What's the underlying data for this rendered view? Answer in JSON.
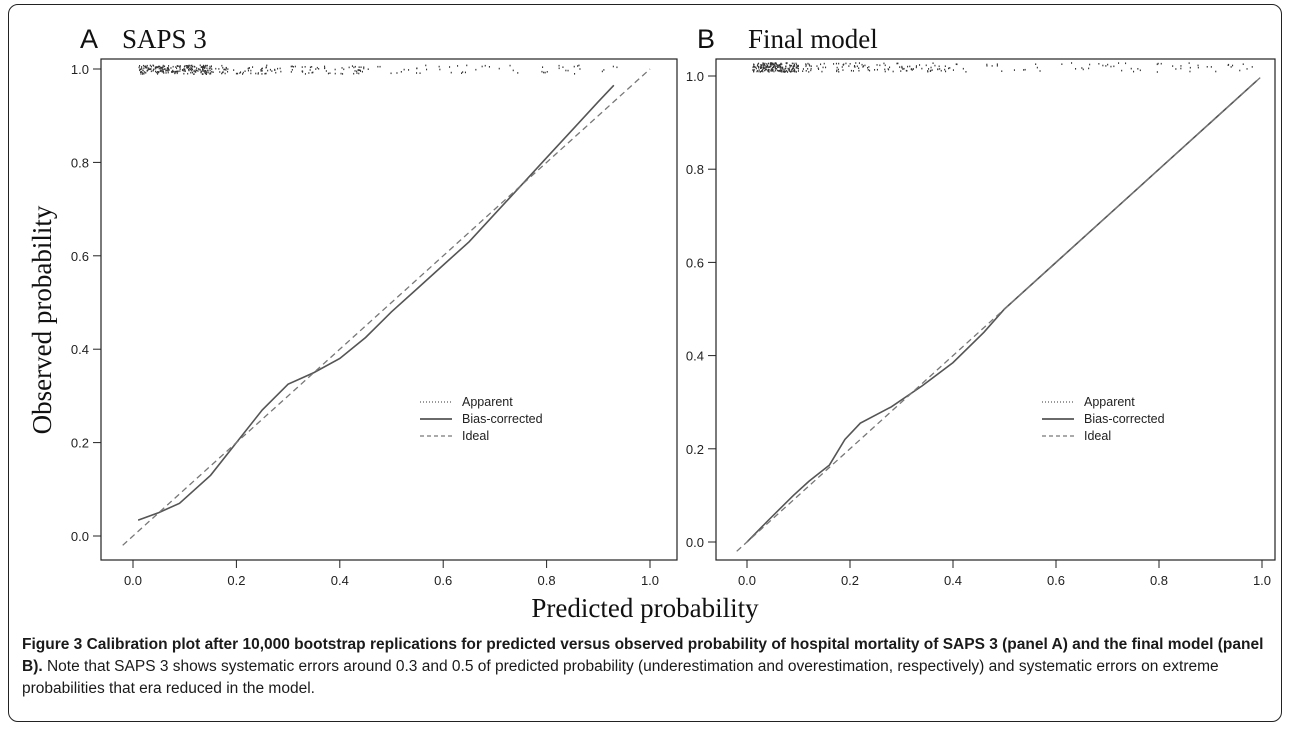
{
  "figure": {
    "xlabel": "Predicted probability",
    "ylabel": "Observed probability"
  },
  "caption": {
    "bold": "Figure 3 Calibration plot after 10,000 bootstrap replications for predicted versus observed probability of hospital mortality of SAPS 3 (panel A) and the final model (panel B).",
    "text": " Note that SAPS 3 shows systematic errors around 0.3 and 0.5 of predicted probability (underestimation and overestimation, respectively) and systematic errors on extreme probabilities that era reduced in the model."
  },
  "colors": {
    "line": "#555555",
    "ideal": "#777777",
    "frame": "#222222"
  },
  "chart_data": [
    {
      "type": "line",
      "panel_letter": "A",
      "title": "SAPS 3",
      "xlim": [
        0,
        1
      ],
      "ylim": [
        0,
        1
      ],
      "x_ticks": [
        "0.0",
        "0.2",
        "0.4",
        "0.6",
        "0.8",
        "1.0"
      ],
      "y_ticks": [
        "0.0",
        "0.2",
        "0.4",
        "0.6",
        "0.8",
        "1.0"
      ],
      "legend": {
        "position": "center-right",
        "entries": [
          "Apparent",
          "Bias-corrected",
          "Ideal"
        ]
      },
      "series": [
        {
          "name": "Apparent",
          "style": "dotted",
          "x": [
            0.01,
            0.05,
            0.09,
            0.15,
            0.2,
            0.25,
            0.3,
            0.35,
            0.4,
            0.45,
            0.5,
            0.55,
            0.6,
            0.65,
            0.7,
            0.75,
            0.8,
            0.85,
            0.9,
            0.93
          ],
          "y": [
            0.034,
            0.05,
            0.07,
            0.13,
            0.2,
            0.27,
            0.325,
            0.35,
            0.38,
            0.425,
            0.48,
            0.53,
            0.58,
            0.63,
            0.69,
            0.75,
            0.81,
            0.87,
            0.93,
            0.965
          ]
        },
        {
          "name": "Bias-corrected",
          "style": "solid",
          "x": [
            0.01,
            0.05,
            0.09,
            0.15,
            0.2,
            0.25,
            0.3,
            0.35,
            0.4,
            0.45,
            0.5,
            0.55,
            0.6,
            0.65,
            0.7,
            0.75,
            0.8,
            0.85,
            0.9,
            0.93
          ],
          "y": [
            0.034,
            0.05,
            0.07,
            0.13,
            0.2,
            0.27,
            0.325,
            0.35,
            0.38,
            0.425,
            0.48,
            0.53,
            0.58,
            0.63,
            0.69,
            0.75,
            0.81,
            0.87,
            0.93,
            0.965
          ]
        },
        {
          "name": "Ideal",
          "style": "dashed",
          "x": [
            -0.02,
            1.0
          ],
          "y": [
            -0.02,
            1.0
          ]
        }
      ],
      "rug": {
        "y": 1.0,
        "clusters": [
          {
            "from": 0.01,
            "to": 0.15,
            "count": 220
          },
          {
            "from": 0.15,
            "to": 0.45,
            "count": 110
          },
          {
            "from": 0.45,
            "to": 0.95,
            "count": 50
          }
        ]
      }
    },
    {
      "type": "line",
      "panel_letter": "B",
      "title": "Final model",
      "xlim": [
        0,
        1
      ],
      "ylim": [
        0,
        1
      ],
      "x_ticks": [
        "0.0",
        "0.2",
        "0.4",
        "0.6",
        "0.8",
        "1.0"
      ],
      "y_ticks": [
        "0.0",
        "0.2",
        "0.4",
        "0.6",
        "0.8",
        "1.0"
      ],
      "legend": {
        "position": "center-right",
        "entries": [
          "Apparent",
          "Bias-corrected",
          "Ideal"
        ]
      },
      "series": [
        {
          "name": "Apparent",
          "style": "dotted",
          "x": [
            0.0,
            0.04,
            0.09,
            0.12,
            0.16,
            0.19,
            0.22,
            0.28,
            0.34,
            0.4,
            0.46,
            0.5,
            0.6,
            0.7,
            0.8,
            0.9,
            0.99
          ],
          "y": [
            0.0,
            0.045,
            0.1,
            0.13,
            0.165,
            0.22,
            0.255,
            0.29,
            0.335,
            0.385,
            0.45,
            0.5,
            0.6,
            0.7,
            0.8,
            0.9,
            0.99
          ]
        },
        {
          "name": "Bias-corrected",
          "style": "solid",
          "x": [
            0.0,
            0.04,
            0.09,
            0.12,
            0.16,
            0.19,
            0.22,
            0.28,
            0.34,
            0.4,
            0.46,
            0.5,
            0.6,
            0.7,
            0.8,
            0.9,
            0.99
          ],
          "y": [
            0.0,
            0.045,
            0.1,
            0.13,
            0.165,
            0.22,
            0.255,
            0.29,
            0.335,
            0.385,
            0.45,
            0.5,
            0.6,
            0.7,
            0.8,
            0.9,
            0.99
          ]
        },
        {
          "name": "Ideal",
          "style": "dashed",
          "x": [
            -0.02,
            1.0
          ],
          "y": [
            -0.02,
            1.0
          ]
        }
      ],
      "rug": {
        "y": 1.02,
        "clusters": [
          {
            "from": 0.01,
            "to": 0.1,
            "count": 200
          },
          {
            "from": 0.1,
            "to": 0.4,
            "count": 110
          },
          {
            "from": 0.4,
            "to": 0.98,
            "count": 60
          }
        ]
      }
    }
  ]
}
